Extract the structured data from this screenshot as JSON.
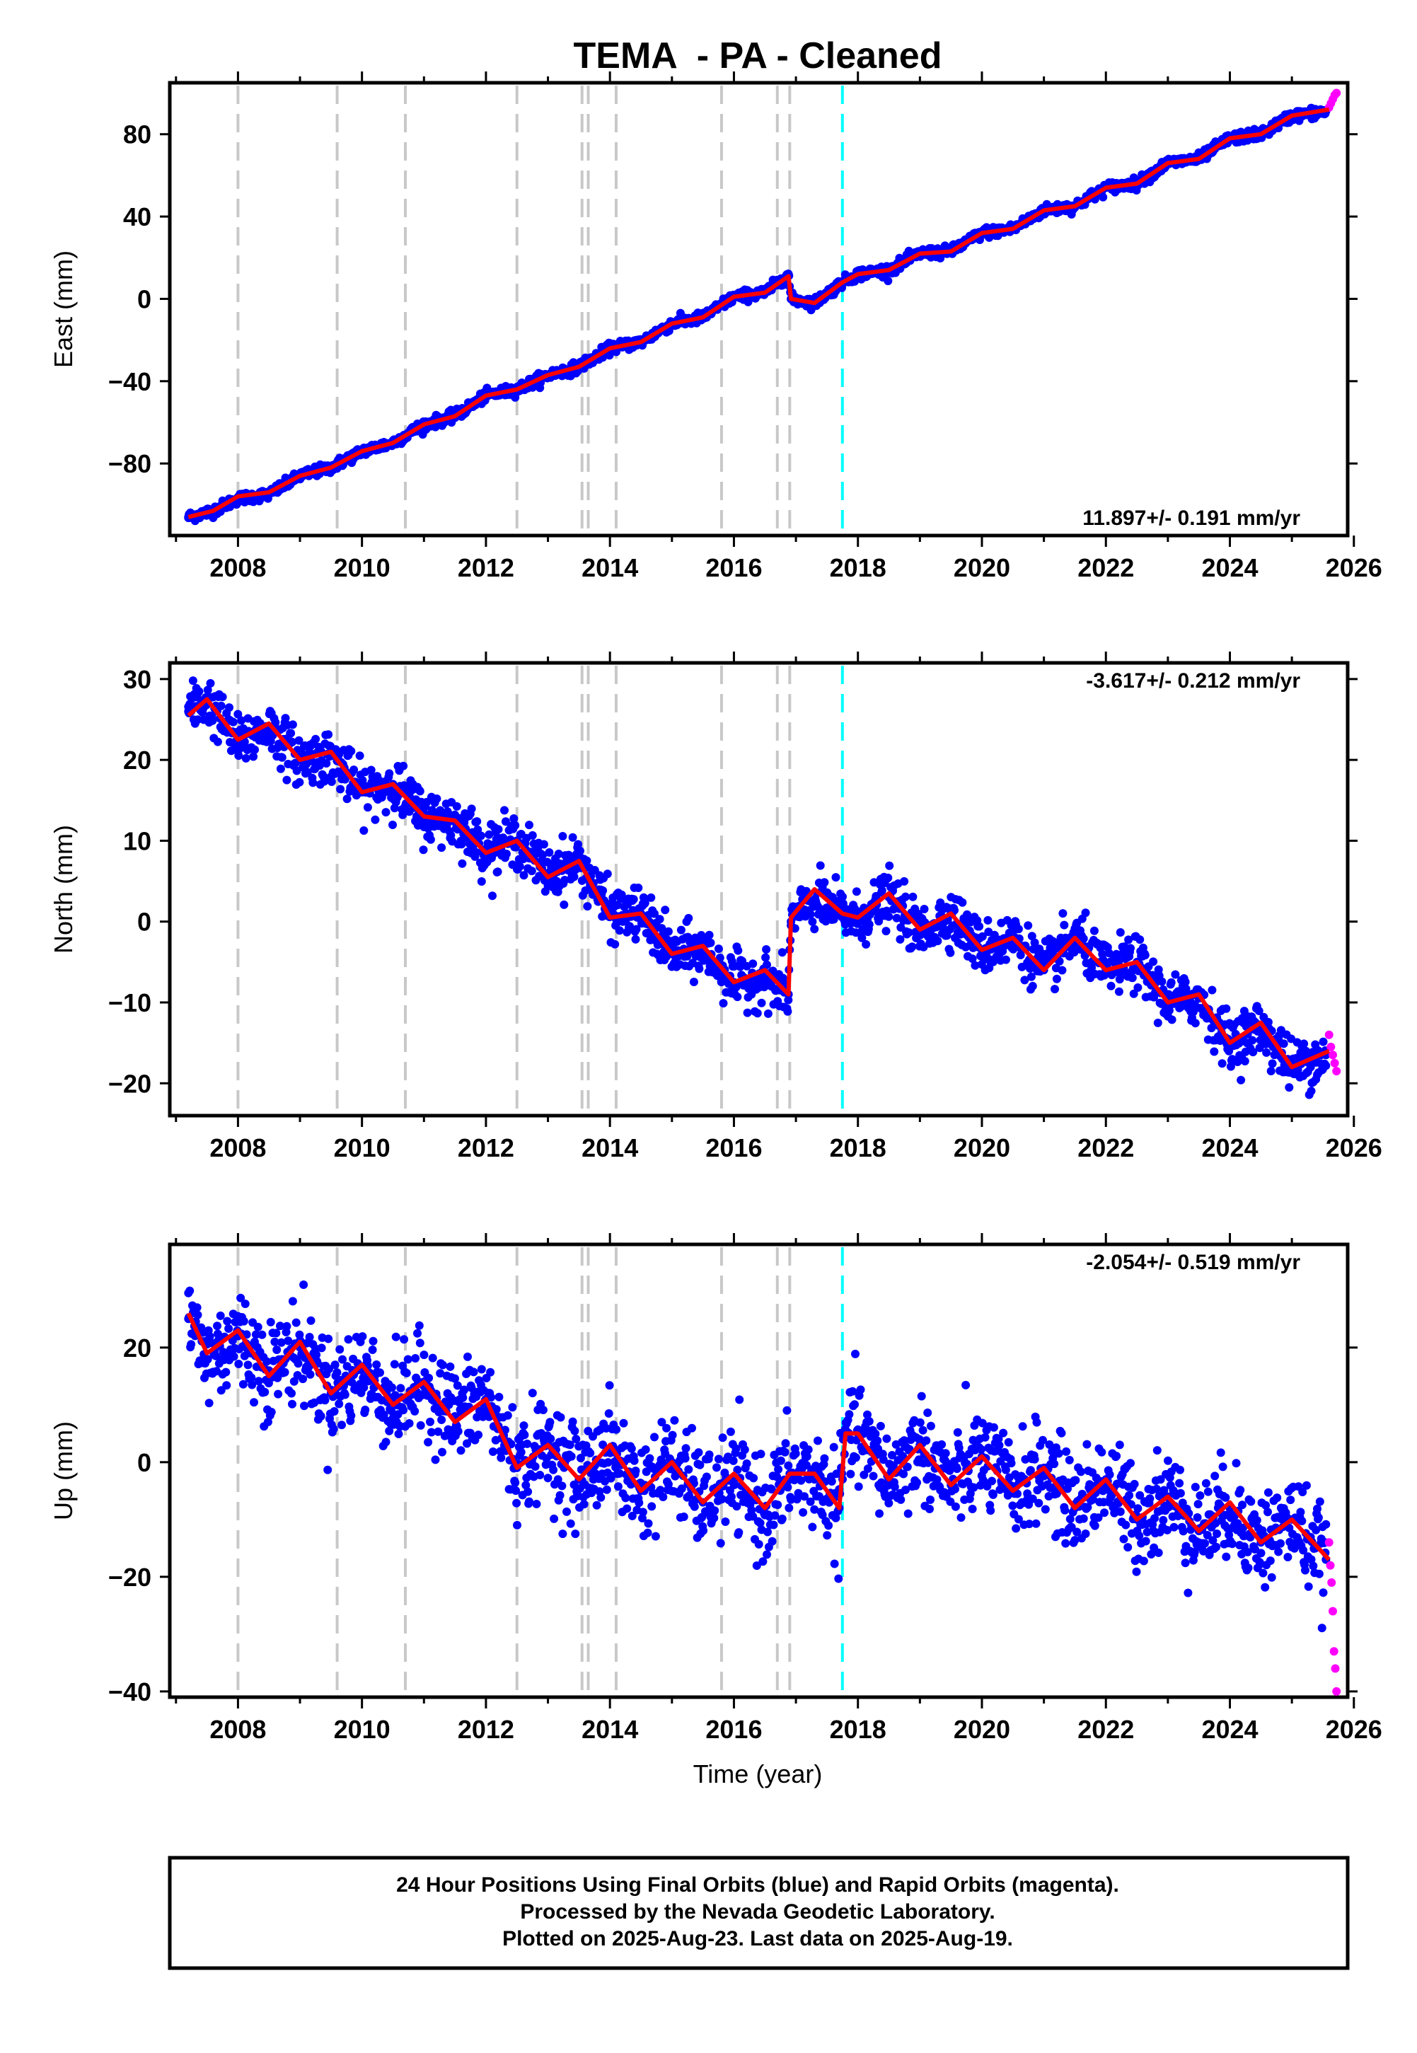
{
  "figure": {
    "title": "TEMA  - PA - Cleaned"
  },
  "chart_data": [
    {
      "type": "scatter",
      "ylabel": "East (mm)",
      "xlabel": "",
      "xlim": [
        2006.9,
        2025.9
      ],
      "ylim": [
        -115,
        105
      ],
      "xticks": [
        2008,
        2010,
        2012,
        2014,
        2016,
        2018,
        2020,
        2022,
        2024,
        2026
      ],
      "yticks": [
        -80,
        -40,
        0,
        40,
        80
      ],
      "rate_label": "11.897+/- 0.191 mm/yr",
      "rate_position": "bottom-right",
      "grid": false,
      "equipment_changes": [
        2008.0,
        2009.6,
        2010.7,
        2012.5,
        2013.55,
        2013.65,
        2014.1,
        2015.8,
        2016.7,
        2016.9
      ],
      "earthquake_events": [
        2017.75
      ],
      "series": [
        {
          "name": "Final Orbits",
          "color": "#0000ff",
          "x": [
            2007.2,
            2007.6,
            2008.0,
            2008.5,
            2009.0,
            2009.5,
            2010.0,
            2010.5,
            2011.0,
            2011.5,
            2012.0,
            2012.5,
            2013.0,
            2013.5,
            2014.0,
            2014.5,
            2015.0,
            2015.5,
            2016.0,
            2016.5,
            2016.88,
            2016.92,
            2017.3,
            2017.75,
            2018.0,
            2018.5,
            2019.0,
            2019.5,
            2020.0,
            2020.5,
            2021.0,
            2021.5,
            2022.0,
            2022.5,
            2023.0,
            2023.5,
            2024.0,
            2024.5,
            2025.0,
            2025.55
          ],
          "y": [
            -106,
            -103,
            -97,
            -95,
            -86,
            -82,
            -74,
            -70,
            -61,
            -57,
            -47,
            -44,
            -37,
            -33,
            -24,
            -21,
            -12,
            -9,
            1,
            3,
            12,
            0,
            -2,
            8,
            12,
            14,
            22,
            23,
            32,
            34,
            43,
            45,
            54,
            56,
            66,
            68,
            78,
            80,
            89,
            91
          ]
        },
        {
          "name": "Rapid Orbits",
          "color": "#ff00ff",
          "x": [
            2025.6,
            2025.63,
            2025.66,
            2025.69,
            2025.72
          ],
          "y": [
            93,
            95,
            97,
            99,
            100
          ]
        },
        {
          "name": "Model",
          "color": "#ff0000",
          "x": [
            2007.2,
            2007.6,
            2008.0,
            2008.5,
            2009.0,
            2009.5,
            2010.0,
            2010.5,
            2011.0,
            2011.5,
            2012.0,
            2012.5,
            2013.0,
            2013.5,
            2014.0,
            2014.5,
            2015.0,
            2015.5,
            2016.0,
            2016.5,
            2016.88,
            2016.92,
            2017.3,
            2017.75,
            2018.0,
            2018.5,
            2019.0,
            2019.5,
            2020.0,
            2020.5,
            2021.0,
            2021.5,
            2022.0,
            2022.5,
            2023.0,
            2023.5,
            2024.0,
            2024.5,
            2025.0,
            2025.6
          ],
          "y": [
            -106,
            -103,
            -96,
            -94,
            -86,
            -82,
            -74,
            -70,
            -61,
            -57,
            -47,
            -44,
            -37,
            -33,
            -24,
            -21,
            -12,
            -9,
            1,
            3,
            11,
            0,
            -2,
            8,
            12,
            14,
            22,
            23,
            32,
            34,
            43,
            45,
            54,
            56,
            66,
            68,
            78,
            80,
            89,
            92
          ]
        }
      ]
    },
    {
      "type": "scatter",
      "ylabel": "North (mm)",
      "xlabel": "",
      "xlim": [
        2006.9,
        2025.9
      ],
      "ylim": [
        -24,
        32
      ],
      "xticks": [
        2008,
        2010,
        2012,
        2014,
        2016,
        2018,
        2020,
        2022,
        2024,
        2026
      ],
      "yticks": [
        -20,
        -10,
        0,
        10,
        20,
        30
      ],
      "rate_label": "-3.617+/- 0.212 mm/yr",
      "rate_position": "top-right",
      "grid": false,
      "equipment_changes": [
        2008.0,
        2009.6,
        2010.7,
        2012.5,
        2013.55,
        2013.65,
        2014.1,
        2015.8,
        2016.7,
        2016.9
      ],
      "earthquake_events": [
        2017.75
      ],
      "series": [
        {
          "name": "Final Orbits",
          "color": "#0000ff",
          "x": [
            2007.2,
            2007.5,
            2008.0,
            2008.5,
            2009.0,
            2009.5,
            2010.0,
            2010.5,
            2011.0,
            2011.5,
            2012.0,
            2012.5,
            2013.0,
            2013.5,
            2014.0,
            2014.5,
            2015.0,
            2015.5,
            2016.0,
            2016.5,
            2016.88,
            2016.92,
            2017.3,
            2017.75,
            2018.0,
            2018.5,
            2019.0,
            2019.5,
            2020.0,
            2020.5,
            2021.0,
            2021.5,
            2022.0,
            2022.5,
            2023.0,
            2023.5,
            2024.0,
            2024.5,
            2025.0,
            2025.55
          ],
          "y": [
            26,
            27.5,
            22,
            24,
            20,
            20.5,
            16,
            17,
            13,
            12.5,
            9,
            10,
            6,
            7.5,
            1,
            1,
            -4,
            -3.5,
            -7.5,
            -7,
            -9,
            0,
            2.5,
            1,
            0,
            3,
            -1.5,
            1,
            -3.5,
            -2,
            -6,
            -2,
            -6,
            -5,
            -10,
            -9.5,
            -15,
            -13,
            -18,
            -16.5
          ]
        },
        {
          "name": "Rapid Orbits",
          "color": "#ff00ff",
          "x": [
            2025.6,
            2025.63,
            2025.66,
            2025.69,
            2025.72
          ],
          "y": [
            -14,
            -15.5,
            -16.5,
            -17.5,
            -18.5
          ]
        },
        {
          "name": "Model",
          "color": "#ff0000",
          "x": [
            2007.2,
            2007.5,
            2008.0,
            2008.5,
            2009.0,
            2009.5,
            2010.0,
            2010.5,
            2011.0,
            2011.5,
            2012.0,
            2012.5,
            2013.0,
            2013.5,
            2014.0,
            2014.5,
            2015.0,
            2015.5,
            2016.0,
            2016.5,
            2016.88,
            2016.92,
            2017.3,
            2017.75,
            2018.0,
            2018.5,
            2019.0,
            2019.5,
            2020.0,
            2020.5,
            2021.0,
            2021.5,
            2022.0,
            2022.5,
            2023.0,
            2023.5,
            2024.0,
            2024.5,
            2025.0,
            2025.6
          ],
          "y": [
            25.5,
            27.5,
            22.5,
            24.5,
            20,
            21,
            16,
            17,
            13,
            12.5,
            8.5,
            10,
            5.5,
            7.5,
            0.5,
            1,
            -4,
            -3,
            -7.5,
            -6,
            -9,
            0.5,
            4,
            1,
            0.5,
            3.5,
            -1,
            1,
            -3.5,
            -2,
            -6,
            -2,
            -6,
            -5,
            -10,
            -9,
            -15,
            -12.5,
            -18,
            -16
          ]
        }
      ]
    },
    {
      "type": "scatter",
      "ylabel": "Up (mm)",
      "xlabel": "Time (year)",
      "xlim": [
        2006.9,
        2025.9
      ],
      "ylim": [
        -41,
        38
      ],
      "xticks": [
        2008,
        2010,
        2012,
        2014,
        2016,
        2018,
        2020,
        2022,
        2024,
        2026
      ],
      "yticks": [
        -40,
        -20,
        0,
        20
      ],
      "rate_label": "-2.054+/- 0.519 mm/yr",
      "rate_position": "top-right",
      "grid": false,
      "equipment_changes": [
        2008.0,
        2009.6,
        2010.7,
        2012.5,
        2013.55,
        2013.65,
        2014.1,
        2015.8,
        2016.7,
        2016.9
      ],
      "earthquake_events": [
        2017.75
      ],
      "series": [
        {
          "name": "Final Orbits",
          "color": "#0000ff",
          "x": [
            2007.2,
            2007.5,
            2008.0,
            2008.5,
            2009.0,
            2009.5,
            2010.0,
            2010.5,
            2011.0,
            2011.5,
            2012.0,
            2012.5,
            2013.0,
            2013.5,
            2014.0,
            2014.5,
            2015.0,
            2015.5,
            2016.0,
            2016.5,
            2016.9,
            2017.3,
            2017.7,
            2017.8,
            2018.0,
            2018.5,
            2019.0,
            2019.5,
            2020.0,
            2020.5,
            2021.0,
            2021.5,
            2022.0,
            2022.5,
            2023.0,
            2023.5,
            2024.0,
            2024.5,
            2025.0,
            2025.55
          ],
          "y": [
            25,
            18,
            22,
            16,
            20,
            12,
            16,
            10,
            14,
            8,
            11,
            -1,
            3,
            -3,
            2,
            -5,
            0,
            -7,
            -3,
            -9,
            -2,
            -3,
            -8,
            5,
            5,
            -3,
            3,
            -4,
            1,
            -5,
            -1,
            -8,
            -3,
            -10,
            -6,
            -12,
            -8,
            -14,
            -10,
            -17
          ]
        },
        {
          "name": "Rapid Orbits",
          "color": "#ff00ff",
          "x": [
            2025.6,
            2025.62,
            2025.64,
            2025.66,
            2025.68,
            2025.7,
            2025.72
          ],
          "y": [
            -14,
            -18,
            -21,
            -26,
            -33,
            -36,
            -40
          ]
        },
        {
          "name": "Model",
          "color": "#ff0000",
          "x": [
            2007.2,
            2007.5,
            2008.0,
            2008.5,
            2009.0,
            2009.5,
            2010.0,
            2010.5,
            2011.0,
            2011.5,
            2012.0,
            2012.5,
            2013.0,
            2013.5,
            2014.0,
            2014.5,
            2015.0,
            2015.5,
            2016.0,
            2016.5,
            2016.9,
            2017.3,
            2017.7,
            2017.8,
            2018.0,
            2018.5,
            2019.0,
            2019.5,
            2020.0,
            2020.5,
            2021.0,
            2021.5,
            2022.0,
            2022.5,
            2023.0,
            2023.5,
            2024.0,
            2024.5,
            2025.0,
            2025.6
          ],
          "y": [
            26,
            19,
            23,
            15,
            21,
            12,
            17,
            10,
            14,
            7,
            11,
            -1,
            3,
            -3,
            3,
            -5,
            0,
            -7,
            -2,
            -8,
            -2,
            -2,
            -8,
            5,
            5,
            -3,
            3,
            -4,
            1,
            -5,
            -1,
            -8,
            -3,
            -10,
            -6,
            -12,
            -7,
            -14,
            -10,
            -17
          ]
        }
      ]
    }
  ],
  "footer": {
    "line1": "24 Hour Positions Using Final Orbits (blue) and Rapid Orbits (magenta).",
    "line2": "Processed by the Nevada Geodetic Laboratory.",
    "line3": "Plotted on 2025-Aug-23. Last data on 2025-Aug-19."
  }
}
